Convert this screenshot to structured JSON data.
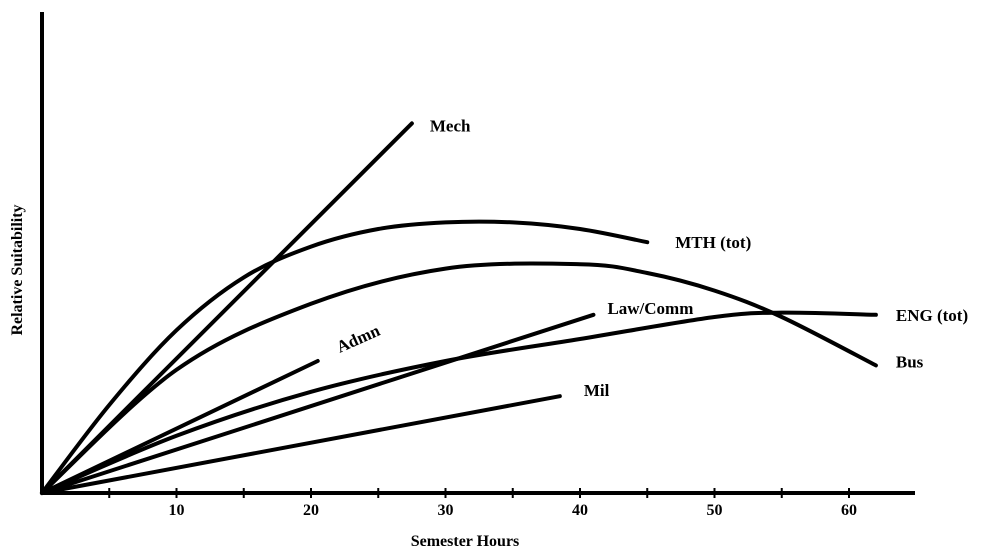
{
  "chart_data": {
    "type": "line",
    "xlabel": "Semester Hours",
    "ylabel": "Relative Suitability",
    "xlim": [
      0,
      64
    ],
    "ylim": [
      0,
      100
    ],
    "x_ticks": [
      10,
      20,
      30,
      40,
      50,
      60
    ],
    "grid": false,
    "legend": "none (labels placed at line ends)",
    "series": [
      {
        "name": "Mech",
        "x": [
          0,
          27.5
        ],
        "y": [
          0,
          84
        ]
      },
      {
        "name": "MTH (tot)",
        "x": [
          0,
          5,
          10,
          15,
          20,
          25,
          30,
          35,
          40,
          45
        ],
        "y": [
          0,
          20,
          37,
          49,
          56,
          60,
          61.5,
          61.5,
          60,
          57
        ]
      },
      {
        "name": "Bus",
        "x": [
          0,
          10,
          20,
          30,
          40,
          45,
          50,
          55,
          62
        ],
        "y": [
          0,
          28,
          43,
          51,
          52,
          50,
          46,
          40,
          29
        ]
      },
      {
        "name": "ENG (tot)",
        "x": [
          0,
          10,
          20,
          30,
          40,
          50,
          55,
          62
        ],
        "y": [
          0,
          13,
          23,
          30,
          35,
          40,
          41,
          40.5
        ]
      },
      {
        "name": "Law/Comm",
        "x": [
          0,
          41
        ],
        "y": [
          0,
          40.5
        ]
      },
      {
        "name": "Admn",
        "x": [
          0,
          20.5
        ],
        "y": [
          0,
          30
        ]
      },
      {
        "name": "Mil",
        "x": [
          0,
          38.5
        ],
        "y": [
          0,
          22
        ]
      }
    ]
  }
}
